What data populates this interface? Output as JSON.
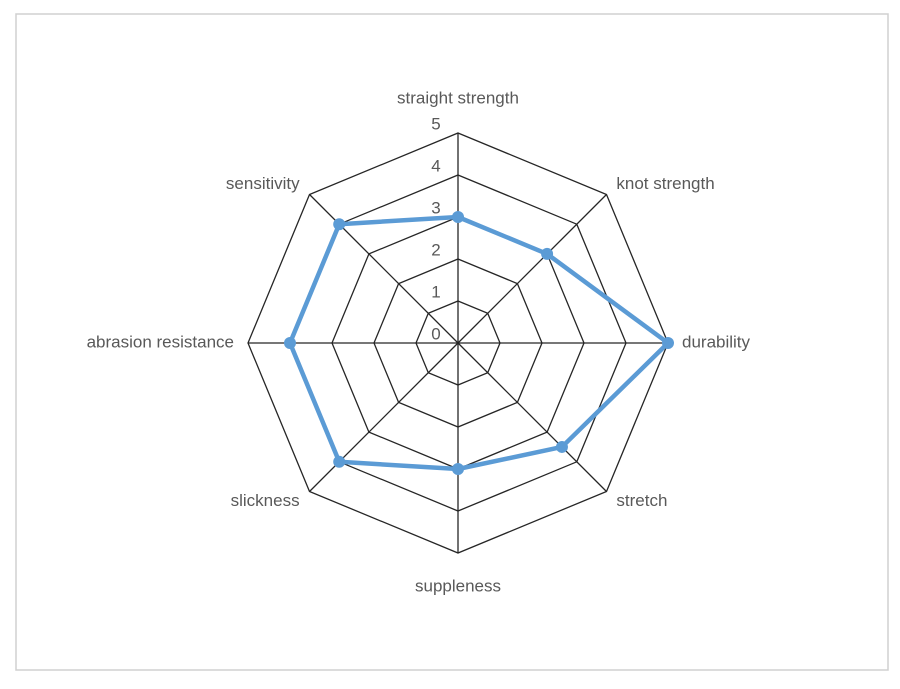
{
  "chart_data": {
    "type": "radar",
    "categories": [
      "straight strength",
      "knot strength",
      "durability",
      "stretch",
      "suppleness",
      "slickness",
      "abrasion resistance",
      "sensitivity"
    ],
    "values": [
      3,
      3,
      5,
      3.5,
      3,
      4,
      4,
      4
    ],
    "color": "#5b9bd5",
    "ylim": [
      0,
      5
    ],
    "yticks": [
      0,
      1,
      2,
      3,
      4,
      5
    ],
    "grid": true
  }
}
